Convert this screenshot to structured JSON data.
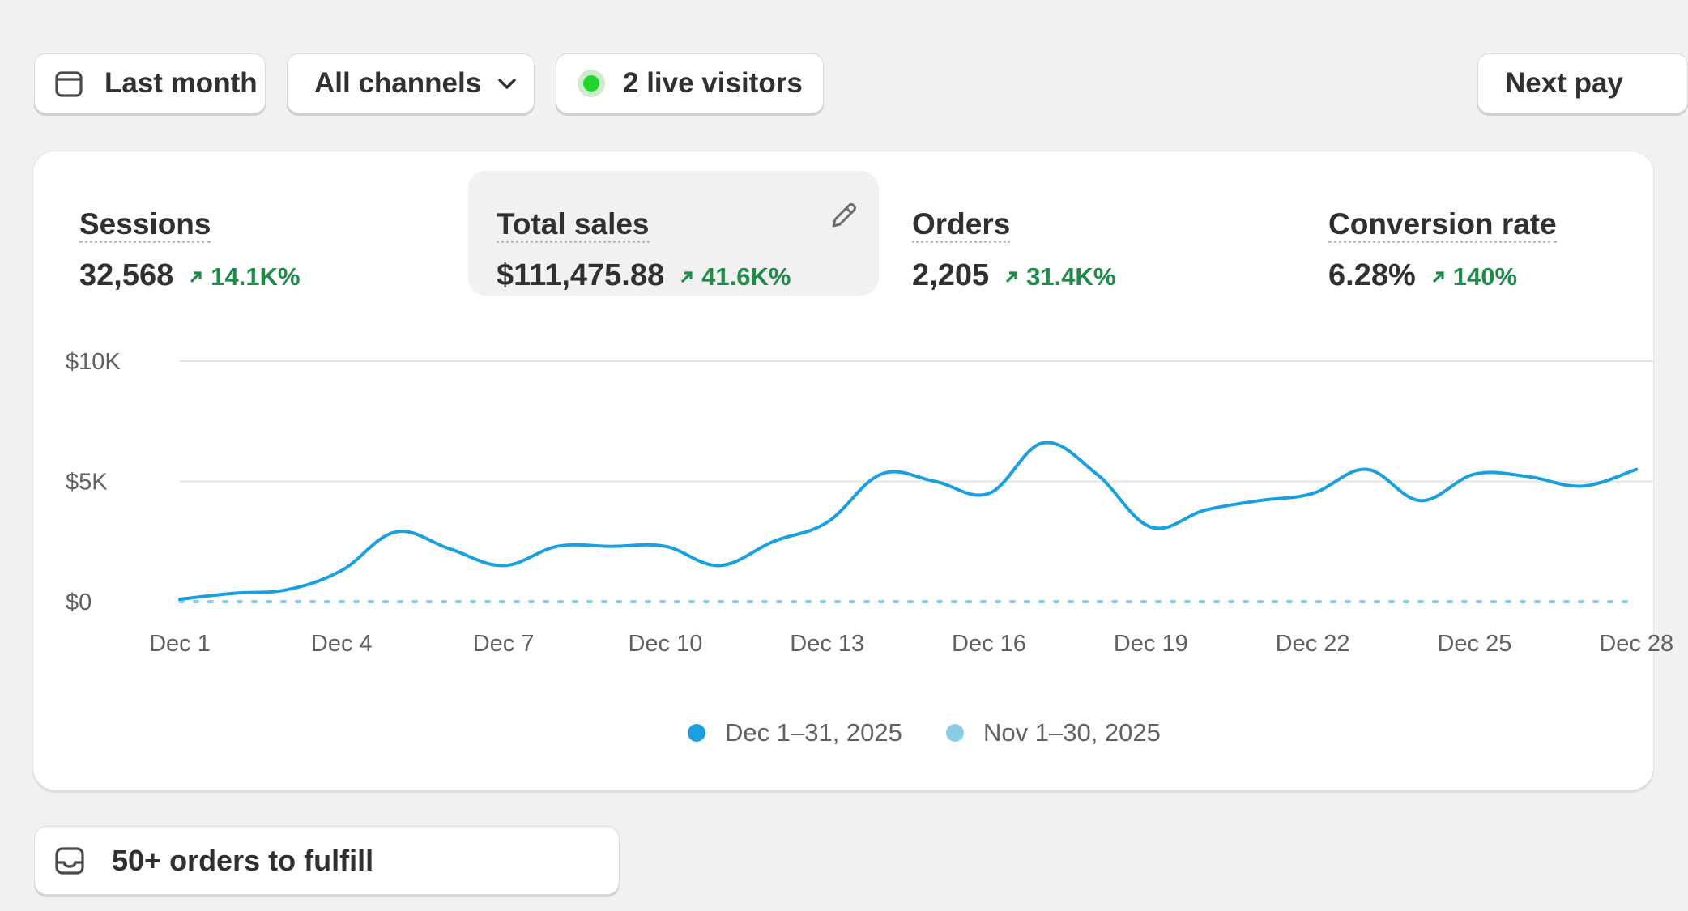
{
  "toolbar": {
    "date_range": "Last month",
    "channels": "All channels",
    "live_visitors": "2 live visitors",
    "next_payout": "Next pay"
  },
  "metrics": [
    {
      "title": "Sessions",
      "value": "32,568",
      "change": "14.1K%"
    },
    {
      "title": "Total sales",
      "value": "$111,475.88",
      "change": "41.6K%",
      "selected": true
    },
    {
      "title": "Orders",
      "value": "2,205",
      "change": "31.4K%"
    },
    {
      "title": "Conversion rate",
      "value": "6.28%",
      "change": "140%"
    }
  ],
  "icons": {
    "date": "calendar-icon",
    "channels": "chevron-down-icon",
    "live": "live-status-dot",
    "edit": "pencil-icon",
    "trend": "arrow-up-right-icon",
    "fulfill": "inbox-icon"
  },
  "colors": {
    "current_series": "#1a9fe0",
    "previous_series": "#8ccbe8",
    "positive_change": "#1e8b48",
    "live_dot": "#1ed72a"
  },
  "chart_data": {
    "type": "line",
    "title": "",
    "xlabel": "",
    "ylabel": "",
    "x": [
      "Dec 1",
      "Dec 2",
      "Dec 3",
      "Dec 4",
      "Dec 5",
      "Dec 6",
      "Dec 7",
      "Dec 8",
      "Dec 9",
      "Dec 10",
      "Dec 11",
      "Dec 12",
      "Dec 13",
      "Dec 14",
      "Dec 15",
      "Dec 16",
      "Dec 17",
      "Dec 18",
      "Dec 19",
      "Dec 20",
      "Dec 21",
      "Dec 22",
      "Dec 23",
      "Dec 24",
      "Dec 25",
      "Dec 26",
      "Dec 27",
      "Dec 28"
    ],
    "x_tick_labels": [
      "Dec 1",
      "Dec 4",
      "Dec 7",
      "Dec 10",
      "Dec 13",
      "Dec 16",
      "Dec 19",
      "Dec 22",
      "Dec 25",
      "Dec 28"
    ],
    "y_tick_labels": [
      "$0",
      "$5K",
      "$10K"
    ],
    "ylim": [
      0,
      10000
    ],
    "grid": true,
    "legend_position": "bottom-center",
    "series": [
      {
        "name": "Dec 1–31, 2025",
        "color": "#1a9fe0",
        "dashed": false,
        "values": [
          100,
          350,
          500,
          1300,
          2900,
          2200,
          1500,
          2300,
          2300,
          2300,
          1500,
          2500,
          3300,
          5300,
          5000,
          4500,
          6600,
          5300,
          3100,
          3800,
          4200,
          4500,
          5500,
          4200,
          5300,
          5200,
          4800,
          5500
        ]
      },
      {
        "name": "Nov 1–30, 2025",
        "color": "#8ccbe8",
        "dashed": true,
        "values": [
          0,
          0,
          0,
          0,
          0,
          0,
          0,
          0,
          0,
          0,
          0,
          0,
          0,
          0,
          0,
          0,
          0,
          0,
          0,
          0,
          0,
          0,
          0,
          0,
          0,
          0,
          0,
          0
        ]
      }
    ]
  },
  "tasks": {
    "fulfill_label": "50+ orders to fulfill"
  }
}
